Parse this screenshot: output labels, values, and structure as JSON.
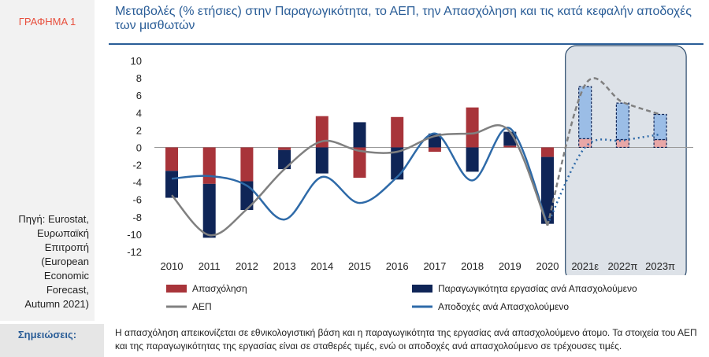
{
  "sidebar": {
    "label": "ΓΡΑΦΗΜΑ 1",
    "source": [
      "Πηγή: Eurostat,",
      "Ευρωπαϊκή",
      "Επιτροπή",
      "(European",
      "Economic",
      "Forecast,",
      "Autumn 2021)"
    ]
  },
  "notes": {
    "label": "Σημειώσεις:",
    "text": "Η απασχόληση απεικονίζεται σε εθνικολογιστική βάση και η παραγωγικότητα της εργασίας ανά απασχολούμενο άτομο. Τα στοιχεία του ΑΕΠ και της παραγωγικότητας της εργασίας είναι σε σταθερές τιμές, ενώ οι αποδοχές ανά απασχολούμενο σε τρέχουσες τιμές."
  },
  "colors": {
    "employment": "#a8343a",
    "productivity": "#0f2557",
    "gdp": "#808080",
    "compensation": "#2e6aa8",
    "forecast_box_fill": "#dde2e8",
    "forecast_box_border": "#2a4a6b",
    "forecast_employment": "#e8a7a7",
    "forecast_productivity": "#9bbde6"
  },
  "chart_data": {
    "type": "bar",
    "title": "Μεταβολές (% ετήσιες) στην Παραγωγικότητα, το ΑΕΠ, την Απασχόληση και τις κατά κεφαλήν αποδοχές των μισθωτών",
    "categories": [
      "2010",
      "2011",
      "2012",
      "2013",
      "2014",
      "2015",
      "2016",
      "2017",
      "2018",
      "2019",
      "2020",
      "2021ε",
      "2022π",
      "2023π"
    ],
    "forecast_categories": [
      "2021ε",
      "2022π",
      "2023π"
    ],
    "ylim": [
      -12,
      10
    ],
    "yticks": [
      10,
      8,
      6,
      4,
      2,
      0,
      -2,
      -4,
      -6,
      -8,
      -10,
      -12
    ],
    "stacked": true,
    "grid": false,
    "legend_position": "bottom",
    "series": [
      {
        "name": "Απασχόληση",
        "kind": "bar",
        "values": [
          -2.7,
          -4.2,
          -3.9,
          -0.3,
          3.6,
          -3.5,
          3.5,
          -0.5,
          4.6,
          0.2,
          -1.1,
          1.0,
          0.9,
          0.9
        ]
      },
      {
        "name": "Παραγωγικότητα εργασίας ανά Απασχολούμενο",
        "kind": "bar",
        "values": [
          -3.1,
          -6.2,
          -3.3,
          -2.2,
          -3.0,
          2.9,
          -3.7,
          1.6,
          -2.8,
          1.6,
          -7.7,
          6.0,
          4.2,
          2.9
        ]
      },
      {
        "name": "ΑΕΠ",
        "kind": "line",
        "style": "solid-then-dashed",
        "values": [
          -5.5,
          -10.1,
          -7.1,
          -2.5,
          0.7,
          -0.4,
          -0.5,
          1.3,
          1.6,
          1.8,
          -9.0,
          7.2,
          5.2,
          3.8
        ]
      },
      {
        "name": "Αποδοχές ανά Απασχολούμενο",
        "kind": "line",
        "style": "solid-then-dotted",
        "values": [
          -3.6,
          -3.3,
          -4.4,
          -8.3,
          -3.4,
          -6.4,
          -3.4,
          1.6,
          -3.8,
          2.2,
          -8.9,
          0.0,
          0.8,
          1.5
        ]
      }
    ]
  }
}
